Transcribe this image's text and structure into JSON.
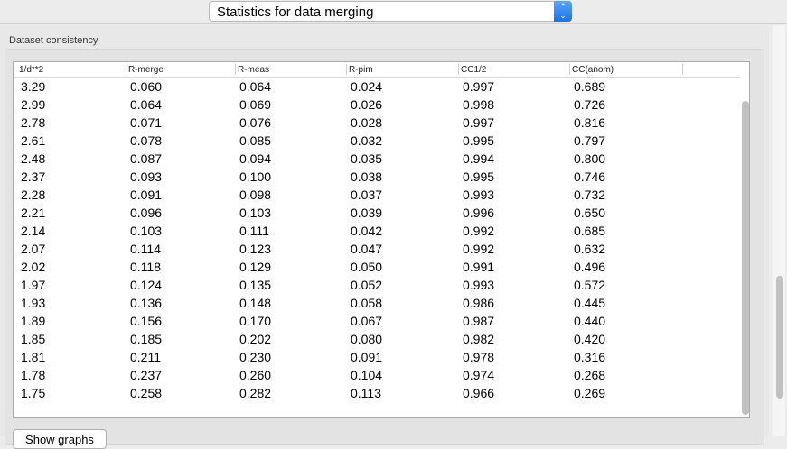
{
  "dropdown": {
    "selected": "Statistics for data merging",
    "icon": "up-down-chevron-icon"
  },
  "group": {
    "label": "Dataset consistency"
  },
  "table": {
    "columns": [
      "1/d**2",
      "R-merge",
      "R-meas",
      "R-pim",
      "CC1/2",
      "CC(anom)"
    ],
    "rows": [
      [
        "3.29",
        "0.060",
        "0.064",
        "0.024",
        "0.997",
        "0.689"
      ],
      [
        "2.99",
        "0.064",
        "0.069",
        "0.026",
        "0.998",
        "0.726"
      ],
      [
        "2.78",
        "0.071",
        "0.076",
        "0.028",
        "0.997",
        "0.816"
      ],
      [
        "2.61",
        "0.078",
        "0.085",
        "0.032",
        "0.995",
        "0.797"
      ],
      [
        "2.48",
        "0.087",
        "0.094",
        "0.035",
        "0.994",
        "0.800"
      ],
      [
        "2.37",
        "0.093",
        "0.100",
        "0.038",
        "0.995",
        "0.746"
      ],
      [
        "2.28",
        "0.091",
        "0.098",
        "0.037",
        "0.993",
        "0.732"
      ],
      [
        "2.21",
        "0.096",
        "0.103",
        "0.039",
        "0.996",
        "0.650"
      ],
      [
        "2.14",
        "0.103",
        "0.111",
        "0.042",
        "0.992",
        "0.685"
      ],
      [
        "2.07",
        "0.114",
        "0.123",
        "0.047",
        "0.992",
        "0.632"
      ],
      [
        "2.02",
        "0.118",
        "0.129",
        "0.050",
        "0.991",
        "0.496"
      ],
      [
        "1.97",
        "0.124",
        "0.135",
        "0.052",
        "0.993",
        "0.572"
      ],
      [
        "1.93",
        "0.136",
        "0.148",
        "0.058",
        "0.986",
        "0.445"
      ],
      [
        "1.89",
        "0.156",
        "0.170",
        "0.067",
        "0.987",
        "0.440"
      ],
      [
        "1.85",
        "0.185",
        "0.202",
        "0.080",
        "0.982",
        "0.420"
      ],
      [
        "1.81",
        "0.211",
        "0.230",
        "0.091",
        "0.978",
        "0.316"
      ],
      [
        "1.78",
        "0.237",
        "0.260",
        "0.104",
        "0.974",
        "0.268"
      ],
      [
        "1.75",
        "0.258",
        "0.282",
        "0.113",
        "0.966",
        "0.269"
      ]
    ]
  },
  "buttons": {
    "show_graphs": "Show graphs"
  }
}
